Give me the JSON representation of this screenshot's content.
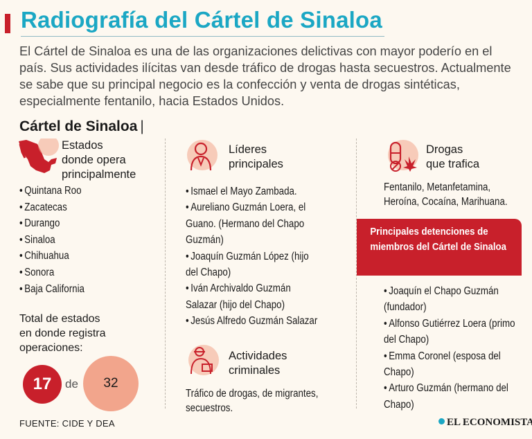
{
  "header": {
    "title": "Radiografía del Cártel de Sinaloa",
    "intro": "El Cártel de Sinaloa es una de las organizaciones delictivas con mayor poderío en el país. Sus actividades ilícitas van desde tráfico de drogas hasta secuestros. Actualmente se sabe que su principal negocio es la confección y venta de drogas sintéticas, especialmente fentanilo, hacia Estados Unidos."
  },
  "section": {
    "title": "Cártel de Sinaloa",
    "pipe": "|"
  },
  "states": {
    "heading": [
      "Estados",
      "donde opera",
      "principalmente"
    ],
    "items": [
      "Quintana Roo",
      "Zacatecas",
      "Durango",
      "Sinaloa",
      "Chihuahua",
      "Sonora",
      "Baja California"
    ],
    "total_label": [
      "Total de estados",
      "en donde registra",
      "operaciones:"
    ],
    "count": "17",
    "connector": "de",
    "total": "32"
  },
  "leaders": {
    "heading": [
      "Líderes",
      "principales"
    ],
    "items": [
      "Ismael el Mayo Zambada.",
      "Aureliano Guzmán Loera, el Guano. (Hermano del Chapo Guzmán)",
      "Joaquín Guzmán López (hijo del Chapo)",
      "Iván Archivaldo Guzmán Salazar (hijo del Chapo)",
      "Jesús Alfredo Guzmán Salazar"
    ]
  },
  "activities": {
    "heading": [
      "Actividades",
      "criminales"
    ],
    "text": "Tráfico de drogas, de migrantes, secuestros."
  },
  "drugs": {
    "heading": [
      "Drogas",
      "que trafica"
    ],
    "text": "Fentanilo, Metanfetamina, Heroína, Cocaína, Marihuana."
  },
  "arrests": {
    "heading": "Principales detenciones de miembros del Cártel de Sinaloa",
    "items": [
      "Joaquín el Chapo Guzmán (fundador)",
      "Alfonso Gutiérrez Loera (primo del Chapo)",
      "Emma Coronel (esposa del Chapo)",
      "Arturo Guzmán (hermano del Chapo)"
    ]
  },
  "footer": {
    "source": "FUENTE: CIDE Y DEA",
    "brand": "EL ECONOMISTA"
  },
  "colors": {
    "accent": "#c8202b",
    "title": "#1ba7c4",
    "peach": "#f2a58c",
    "background": "#fdf8f0"
  }
}
